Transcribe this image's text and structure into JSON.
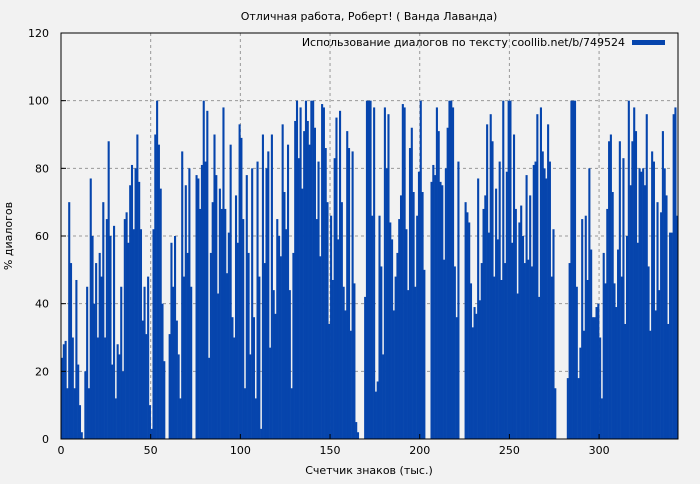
{
  "chart_data": {
    "type": "bar",
    "title": "Отличная работа, Роберт! ( Ванда Лаванда)",
    "xlabel": "Счетчик знаков (тыс.)",
    "ylabel": "% диалогов",
    "xlim": [
      0,
      344
    ],
    "ylim": [
      0,
      120
    ],
    "xticks": [
      0,
      50,
      100,
      150,
      200,
      250,
      300
    ],
    "yticks": [
      0,
      20,
      40,
      60,
      80,
      100,
      120
    ],
    "grid": true,
    "legend_position": "top-right",
    "series": [
      {
        "name": "Использование диалогов по тексту coollib.net/b/749524",
        "color": "#0645ad",
        "values": [
          24,
          28,
          29,
          15,
          70,
          52,
          30,
          15,
          47,
          22,
          10,
          2,
          0,
          20,
          45,
          15,
          77,
          60,
          40,
          52,
          30,
          55,
          48,
          70,
          30,
          65,
          88,
          60,
          22,
          63,
          12,
          28,
          25,
          45,
          20,
          65,
          67,
          58,
          75,
          81,
          62,
          80,
          90,
          76,
          62,
          35,
          45,
          31,
          48,
          10,
          3,
          62,
          90,
          100,
          87,
          74,
          40,
          23,
          0,
          0,
          31,
          58,
          45,
          60,
          35,
          25,
          12,
          85,
          48,
          75,
          55,
          80,
          45,
          0,
          0,
          78,
          77,
          68,
          81,
          100,
          82,
          97,
          24,
          55,
          70,
          90,
          78,
          43,
          74,
          68,
          98,
          68,
          49,
          61,
          87,
          36,
          30,
          72,
          58,
          93,
          89,
          65,
          15,
          78,
          55,
          25,
          80,
          36,
          12,
          82,
          48,
          3,
          90,
          52,
          80,
          85,
          27,
          90,
          44,
          37,
          65,
          60,
          54,
          93,
          73,
          62,
          87,
          44,
          15,
          55,
          94,
          100,
          83,
          98,
          74,
          91,
          100,
          94,
          87,
          100,
          100,
          92,
          65,
          82,
          54,
          99,
          98,
          86,
          70,
          34,
          66,
          47,
          83,
          95,
          59,
          97,
          70,
          45,
          38,
          91,
          86,
          32,
          85,
          46,
          5,
          2,
          0,
          0,
          0,
          42,
          100,
          100,
          100,
          66,
          98,
          14,
          17,
          66,
          51,
          25,
          98,
          80,
          96,
          64,
          59,
          38,
          48,
          55,
          65,
          72,
          99,
          98,
          62,
          44,
          86,
          92,
          73,
          45,
          66,
          79,
          100,
          73,
          50,
          0,
          0,
          0,
          76,
          81,
          78,
          98,
          91,
          76,
          75,
          53,
          80,
          92,
          100,
          100,
          98,
          51,
          36,
          82,
          0,
          0,
          0,
          70,
          67,
          64,
          46,
          33,
          39,
          37,
          77,
          41,
          52,
          68,
          72,
          93,
          61,
          96,
          88,
          48,
          74,
          59,
          82,
          47,
          100,
          52,
          79,
          100,
          100,
          58,
          90,
          68,
          43,
          64,
          69,
          60,
          52,
          78,
          53,
          72,
          51,
          81,
          82,
          96,
          42,
          98,
          85,
          80,
          77,
          93,
          82,
          48,
          62,
          15,
          0,
          0,
          0,
          0,
          0,
          0,
          18,
          52,
          100,
          100,
          100,
          45,
          18,
          27,
          65,
          32,
          66,
          47,
          80,
          56,
          36,
          36,
          39,
          40,
          30,
          12,
          55,
          46,
          68,
          88,
          90,
          73,
          46,
          39,
          56,
          88,
          48,
          83,
          34,
          60,
          100,
          75,
          88,
          98,
          91,
          58,
          80,
          79,
          80,
          75,
          96,
          51,
          32,
          85,
          82,
          38,
          70,
          44,
          67,
          91,
          80,
          72,
          34,
          61,
          61,
          96,
          98,
          66
        ]
      }
    ]
  }
}
